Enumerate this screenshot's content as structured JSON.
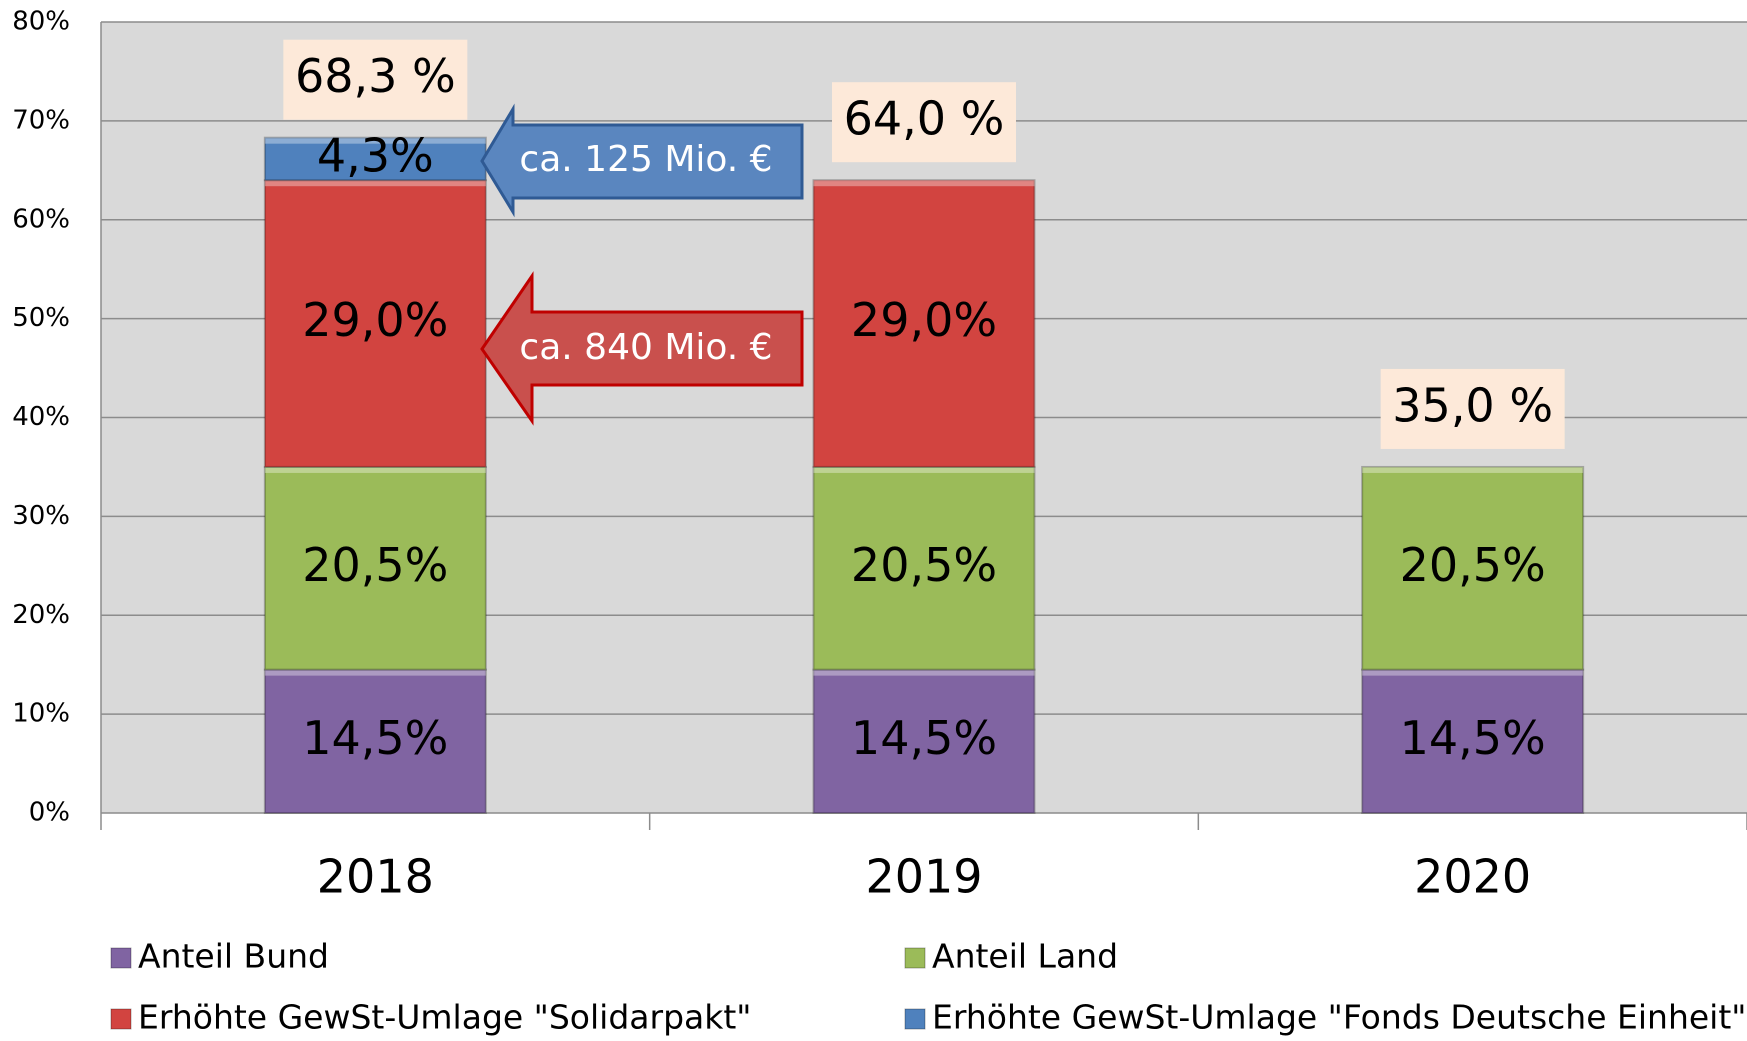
{
  "chart_data": {
    "type": "stacked-bar",
    "categories": [
      "2018",
      "2019",
      "2020"
    ],
    "series": [
      {
        "name": "Anteil Bund",
        "color": "#8064a2",
        "values": [
          14.5,
          14.5,
          14.5
        ],
        "value_labels": [
          "14,5%",
          "14,5%",
          "14,5%"
        ]
      },
      {
        "name": "Anteil Land",
        "color": "#9bbb59",
        "values": [
          20.5,
          20.5,
          20.5
        ],
        "value_labels": [
          "20,5%",
          "20,5%",
          "20,5%"
        ]
      },
      {
        "name": "Erhöhte GewSt-Umlage \"Solidarpakt\"",
        "color": "#d24440",
        "values": [
          29.0,
          29.0,
          null
        ],
        "value_labels": [
          "29,0%",
          "29,0%",
          null
        ]
      },
      {
        "name": "Erhöhte GewSt-Umlage \"Fonds Deutsche Einheit\"",
        "color": "#4f81bd",
        "values": [
          4.3,
          null,
          null
        ],
        "value_labels": [
          "4,3%",
          null,
          null
        ]
      }
    ],
    "totals": {
      "values": [
        68.3,
        64.0,
        35.0
      ],
      "value_labels": [
        "68,3 %",
        "64,0 %",
        "35,0 %"
      ]
    },
    "annotations": [
      "ca. 125 Mio.  €",
      "ca. 840 Mio. €"
    ],
    "ylim": [
      0,
      80
    ],
    "yticks": [
      {
        "value": 0,
        "label": "0%"
      },
      {
        "value": 10,
        "label": "10%"
      },
      {
        "value": 20,
        "label": "20%"
      },
      {
        "value": 30,
        "label": "30%"
      },
      {
        "value": 40,
        "label": "40%"
      },
      {
        "value": 50,
        "label": "50%"
      },
      {
        "value": 60,
        "label": "60%"
      },
      {
        "value": 70,
        "label": "70%"
      },
      {
        "value": 80,
        "label": "80%"
      }
    ],
    "grid": true,
    "legend": "bottom"
  }
}
